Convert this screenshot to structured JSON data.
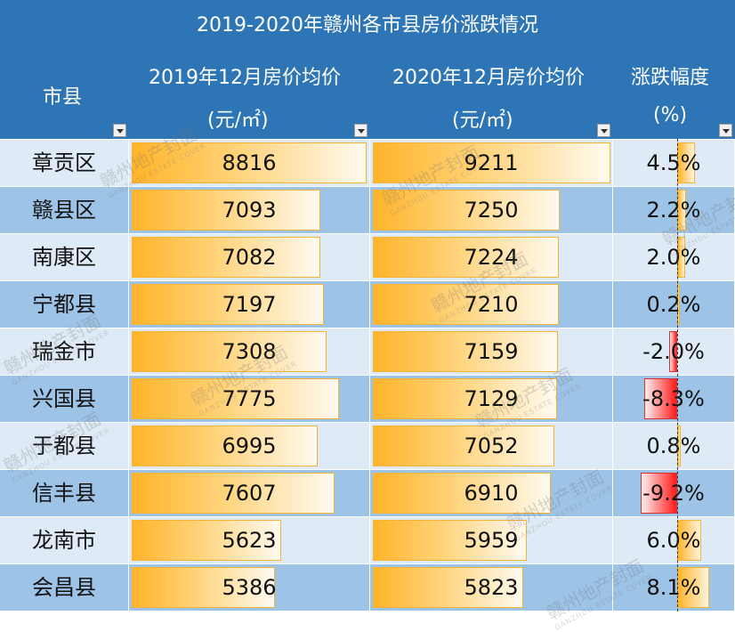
{
  "title": "2019-2020年赣州各市县房价涨跌情况",
  "headers": {
    "city": "市县",
    "p2019_line1": "2019年12月房价均价",
    "p2019_line2": "(元/㎡)",
    "p2020_line1": "2020年12月房价均价",
    "p2020_line2": "(元/㎡)",
    "change_line1": "涨跌幅度",
    "change_line2": "(%)"
  },
  "rows": [
    {
      "city": "章贡区",
      "p2019": 8816,
      "p2020": 9211,
      "change": "4.5%",
      "pct": 4.5
    },
    {
      "city": "赣县区",
      "p2019": 7093,
      "p2020": 7250,
      "change": "2.2%",
      "pct": 2.2
    },
    {
      "city": "南康区",
      "p2019": 7082,
      "p2020": 7224,
      "change": "2.0%",
      "pct": 2.0
    },
    {
      "city": "宁都县",
      "p2019": 7197,
      "p2020": 7210,
      "change": "0.2%",
      "pct": 0.2
    },
    {
      "city": "瑞金市",
      "p2019": 7308,
      "p2020": 7159,
      "change": "-2.0%",
      "pct": -2.0
    },
    {
      "city": "兴国县",
      "p2019": 7775,
      "p2020": 7129,
      "change": "-8.3%",
      "pct": -8.3
    },
    {
      "city": "于都县",
      "p2019": 6995,
      "p2020": 7052,
      "change": "0.8%",
      "pct": 0.8
    },
    {
      "city": "信丰县",
      "p2019": 7607,
      "p2020": 6910,
      "change": "-9.2%",
      "pct": -9.2
    },
    {
      "city": "龙南市",
      "p2019": 5623,
      "p2020": 5959,
      "change": "6.0%",
      "pct": 6.0
    },
    {
      "city": "会昌县",
      "p2019": 5386,
      "p2020": 5823,
      "change": "8.1%",
      "pct": 8.1
    }
  ],
  "watermark": {
    "cn": "赣州地产封面",
    "en": "GANZHOU ESTATE COVER"
  },
  "colors": {
    "header": "#2e75b6",
    "row_light": "#deebf7",
    "row_dark": "#9dc3e6",
    "bar_positive": "#ffb42a",
    "bar_negative": "#ff1a1a"
  }
}
